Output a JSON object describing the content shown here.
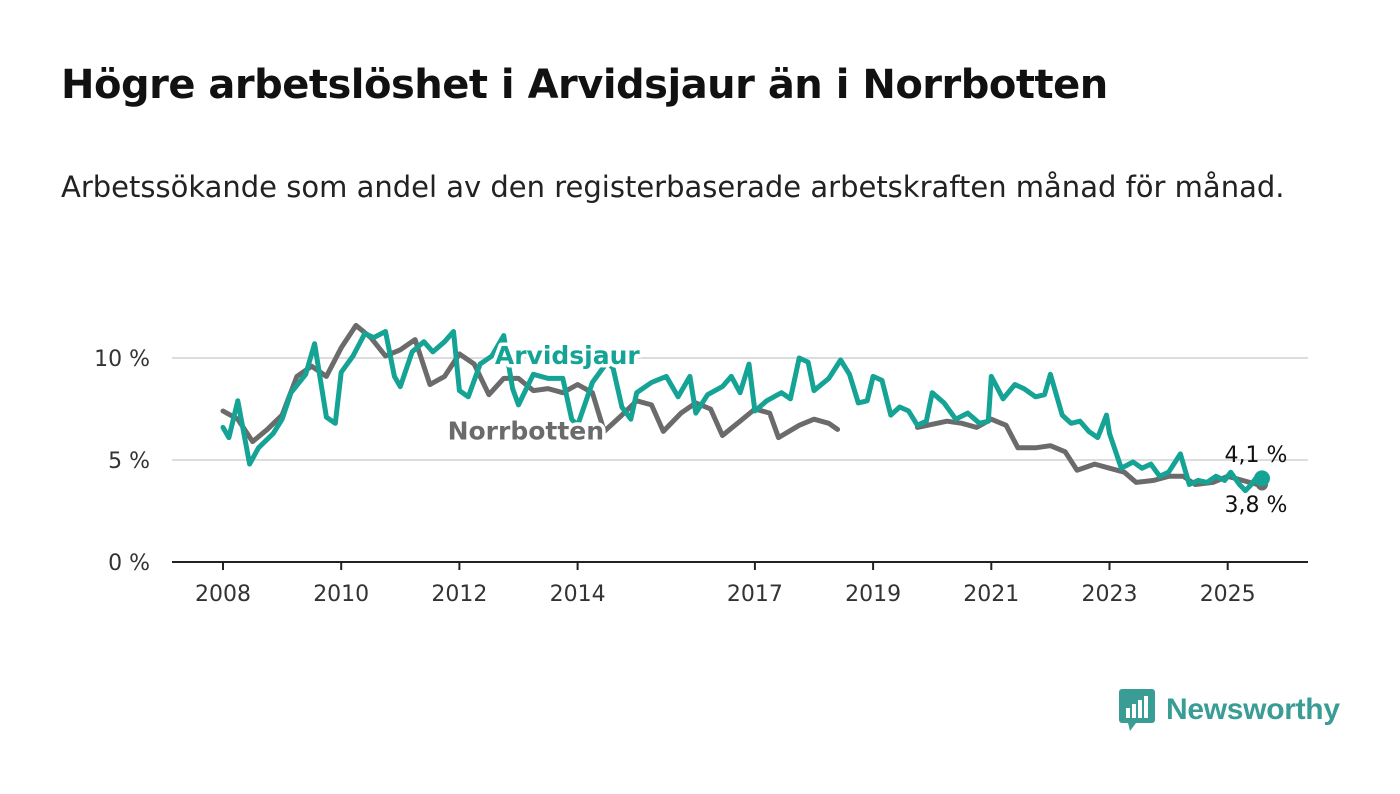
{
  "title": "Högre arbetslöshet i Arvidsjaur än i Norrbotten",
  "subtitle": "Arbetssökande som andel av den registerbaserade arbetskraften månad för månad.",
  "brand": {
    "name": "Newsworthy",
    "icon": "newsworthy-logo-icon"
  },
  "colors": {
    "arvidsjaur": "#14a394",
    "norrbotten": "#6b6b6b",
    "axis": "#222222",
    "grid": "#dddddd"
  },
  "chart_data": {
    "type": "line",
    "title": "Högre arbetslöshet i Arvidsjaur än i Norrbotten",
    "subtitle": "Arbetssökande som andel av den registerbaserade arbetskraften månad för månad.",
    "x_unit": "year (decimal, month-resolution)",
    "xlim": [
      2008,
      2025.6
    ],
    "ylim": [
      0,
      12
    ],
    "y_ticks": [
      {
        "value": 0,
        "label": "0 %"
      },
      {
        "value": 5,
        "label": "5 %"
      },
      {
        "value": 10,
        "label": "10 %"
      }
    ],
    "x_ticks": [
      {
        "value": 2008,
        "label": "2008"
      },
      {
        "value": 2010,
        "label": "2010"
      },
      {
        "value": 2012,
        "label": "2012"
      },
      {
        "value": 2014,
        "label": "2014"
      },
      {
        "value": 2017,
        "label": "2017"
      },
      {
        "value": 2019,
        "label": "2019"
      },
      {
        "value": 2021,
        "label": "2021"
      },
      {
        "value": 2023,
        "label": "2023"
      },
      {
        "value": 2025,
        "label": "2025"
      }
    ],
    "grid": true,
    "legend": "direct labels on lines",
    "series": [
      {
        "name": "Norrbotten",
        "color": "#6b6b6b",
        "label_at": [
          2011.8,
          6.0
        ],
        "end_label": "3,8 %",
        "points": [
          [
            2008.0,
            7.4
          ],
          [
            2008.25,
            7.0
          ],
          [
            2008.5,
            5.9
          ],
          [
            2008.75,
            6.5
          ],
          [
            2009.0,
            7.2
          ],
          [
            2009.25,
            9.1
          ],
          [
            2009.5,
            9.6
          ],
          [
            2009.75,
            9.1
          ],
          [
            2010.0,
            10.5
          ],
          [
            2010.25,
            11.6
          ],
          [
            2010.5,
            11.0
          ],
          [
            2010.75,
            10.1
          ],
          [
            2011.0,
            10.4
          ],
          [
            2011.25,
            10.9
          ],
          [
            2011.5,
            8.7
          ],
          [
            2011.75,
            9.1
          ],
          [
            2012.0,
            10.2
          ],
          [
            2012.25,
            9.7
          ],
          [
            2012.5,
            8.2
          ],
          [
            2012.75,
            9.0
          ],
          [
            2013.0,
            9.0
          ],
          [
            2013.25,
            8.4
          ],
          [
            2013.5,
            8.5
          ],
          [
            2013.75,
            8.3
          ],
          [
            2014.0,
            8.7
          ],
          [
            2014.25,
            8.3
          ],
          [
            2014.45,
            6.4
          ],
          [
            2014.75,
            7.2
          ],
          [
            2015.0,
            7.9
          ],
          [
            2015.25,
            7.7
          ],
          [
            2015.45,
            6.4
          ],
          [
            2015.75,
            7.3
          ],
          [
            2016.0,
            7.8
          ],
          [
            2016.25,
            7.5
          ],
          [
            2016.45,
            6.2
          ],
          [
            2016.75,
            6.9
          ],
          [
            2017.0,
            7.5
          ],
          [
            2017.25,
            7.3
          ],
          [
            2017.4,
            6.1
          ],
          [
            2017.75,
            6.7
          ],
          [
            2018.0,
            7.0
          ],
          [
            2018.25,
            6.8
          ],
          [
            2018.4,
            6.5
          ]
        ],
        "points2": [
          [
            2019.75,
            6.6
          ],
          [
            2020.25,
            6.9
          ],
          [
            2020.5,
            6.8
          ],
          [
            2020.75,
            6.6
          ],
          [
            2021.0,
            7.0
          ],
          [
            2021.25,
            6.7
          ],
          [
            2021.45,
            5.6
          ],
          [
            2021.75,
            5.6
          ],
          [
            2022.0,
            5.7
          ],
          [
            2022.25,
            5.4
          ],
          [
            2022.45,
            4.5
          ],
          [
            2022.75,
            4.8
          ],
          [
            2023.0,
            4.6
          ],
          [
            2023.25,
            4.4
          ],
          [
            2023.45,
            3.9
          ],
          [
            2023.75,
            4.0
          ],
          [
            2024.0,
            4.2
          ],
          [
            2024.25,
            4.2
          ],
          [
            2024.45,
            3.8
          ],
          [
            2024.75,
            3.9
          ],
          [
            2025.0,
            4.2
          ],
          [
            2025.25,
            4.0
          ],
          [
            2025.5,
            3.8
          ],
          [
            2025.58,
            3.8
          ]
        ]
      },
      {
        "name": "Arvidsjaur",
        "color": "#14a394",
        "label_at": [
          2012.6,
          9.7
        ],
        "end_label": "4,1 %",
        "points": [
          [
            2008.0,
            6.6
          ],
          [
            2008.1,
            6.1
          ],
          [
            2008.25,
            7.9
          ],
          [
            2008.45,
            4.8
          ],
          [
            2008.6,
            5.6
          ],
          [
            2008.85,
            6.3
          ],
          [
            2009.0,
            7.0
          ],
          [
            2009.15,
            8.3
          ],
          [
            2009.4,
            9.2
          ],
          [
            2009.55,
            10.7
          ],
          [
            2009.75,
            7.1
          ],
          [
            2009.9,
            6.8
          ],
          [
            2010.0,
            9.3
          ],
          [
            2010.2,
            10.1
          ],
          [
            2010.4,
            11.2
          ],
          [
            2010.55,
            11.0
          ],
          [
            2010.75,
            11.3
          ],
          [
            2010.9,
            9.1
          ],
          [
            2011.0,
            8.6
          ],
          [
            2011.2,
            10.3
          ],
          [
            2011.4,
            10.8
          ],
          [
            2011.55,
            10.3
          ],
          [
            2011.75,
            10.8
          ],
          [
            2011.9,
            11.3
          ],
          [
            2012.0,
            8.4
          ],
          [
            2012.15,
            8.1
          ],
          [
            2012.35,
            9.7
          ],
          [
            2012.55,
            10.1
          ],
          [
            2012.75,
            11.1
          ],
          [
            2012.9,
            8.5
          ],
          [
            2013.0,
            7.7
          ],
          [
            2013.25,
            9.2
          ],
          [
            2013.5,
            9.0
          ],
          [
            2013.75,
            9.0
          ],
          [
            2013.9,
            7.0
          ],
          [
            2014.0,
            6.7
          ],
          [
            2014.25,
            8.8
          ],
          [
            2014.5,
            9.8
          ],
          [
            2014.6,
            9.5
          ],
          [
            2014.75,
            7.6
          ],
          [
            2014.9,
            7.0
          ],
          [
            2015.0,
            8.3
          ],
          [
            2015.25,
            8.8
          ],
          [
            2015.5,
            9.1
          ],
          [
            2015.7,
            8.1
          ],
          [
            2015.9,
            9.1
          ],
          [
            2016.0,
            7.3
          ],
          [
            2016.2,
            8.2
          ],
          [
            2016.45,
            8.6
          ],
          [
            2016.6,
            9.1
          ],
          [
            2016.75,
            8.3
          ],
          [
            2016.9,
            9.7
          ],
          [
            2017.0,
            7.4
          ],
          [
            2017.2,
            7.9
          ],
          [
            2017.45,
            8.3
          ],
          [
            2017.6,
            8.0
          ],
          [
            2017.75,
            10.0
          ],
          [
            2017.9,
            9.8
          ],
          [
            2018.0,
            8.4
          ],
          [
            2018.25,
            9.0
          ],
          [
            2018.45,
            9.9
          ],
          [
            2018.6,
            9.2
          ],
          [
            2018.75,
            7.8
          ],
          [
            2018.9,
            7.9
          ],
          [
            2019.0,
            9.1
          ],
          [
            2019.15,
            8.9
          ],
          [
            2019.3,
            7.2
          ],
          [
            2019.45,
            7.6
          ],
          [
            2019.6,
            7.4
          ],
          [
            2019.75,
            6.7
          ],
          [
            2019.9,
            6.9
          ],
          [
            2020.0,
            8.3
          ],
          [
            2020.2,
            7.8
          ],
          [
            2020.4,
            7.0
          ],
          [
            2020.6,
            7.3
          ],
          [
            2020.8,
            6.8
          ],
          [
            2020.95,
            6.9
          ],
          [
            2021.0,
            9.1
          ],
          [
            2021.2,
            8.0
          ],
          [
            2021.4,
            8.7
          ],
          [
            2021.55,
            8.5
          ],
          [
            2021.75,
            8.1
          ],
          [
            2021.9,
            8.2
          ],
          [
            2022.0,
            9.2
          ],
          [
            2022.2,
            7.2
          ],
          [
            2022.35,
            6.8
          ],
          [
            2022.5,
            6.9
          ],
          [
            2022.65,
            6.4
          ],
          [
            2022.8,
            6.1
          ],
          [
            2022.95,
            7.2
          ],
          [
            2023.0,
            6.3
          ],
          [
            2023.2,
            4.6
          ],
          [
            2023.4,
            4.9
          ],
          [
            2023.55,
            4.6
          ],
          [
            2023.7,
            4.8
          ],
          [
            2023.85,
            4.2
          ],
          [
            2024.0,
            4.4
          ],
          [
            2024.2,
            5.3
          ],
          [
            2024.35,
            3.8
          ],
          [
            2024.5,
            4.0
          ],
          [
            2024.65,
            3.9
          ],
          [
            2024.8,
            4.2
          ],
          [
            2024.95,
            4.0
          ],
          [
            2025.05,
            4.4
          ],
          [
            2025.2,
            3.8
          ],
          [
            2025.3,
            3.5
          ],
          [
            2025.4,
            3.8
          ],
          [
            2025.5,
            4.2
          ],
          [
            2025.58,
            4.1
          ]
        ]
      }
    ]
  }
}
